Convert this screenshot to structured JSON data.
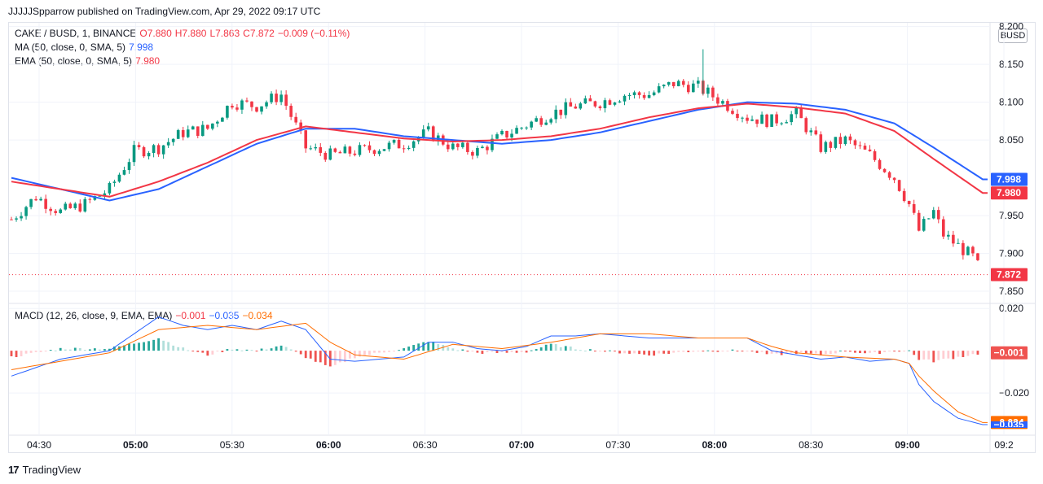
{
  "header": {
    "text": "JJJJJSpparrow published on TradingView.com, Apr 29, 2022 09:17 UTC"
  },
  "unit_label": "BUSD",
  "legend": {
    "symbol": "CAKE / BUSD, 1, BINANCE",
    "o": "O7.880",
    "h": "H7.880",
    "l": "L7.863",
    "c": "C7.872",
    "change": "−0.009 (−0.11%)",
    "ma_label": "MA (50, close, 0, SMA, 5)",
    "ma_value": "7.998",
    "ema_label": "EMA (50, close, 0, SMA, 5)",
    "ema_value": "7.980",
    "macd_label": "MACD (12, 26, close, 9, EMA, EMA)",
    "macd_hist": "−0.001",
    "macd_line": "−0.035",
    "macd_signal": "−0.034"
  },
  "footer": {
    "brand": "TradingView",
    "logo": "17"
  },
  "colors": {
    "up": "#089981",
    "down": "#f23645",
    "ma": "#2962ff",
    "ema": "#f23645",
    "macd": "#2962ff",
    "signal": "#ff6d00",
    "hist_up": "#26a69a",
    "hist_up_light": "#b2dfdb",
    "hist_dn": "#ef5350",
    "hist_dn_light": "#ffcdd2",
    "grid": "#f0f3fa"
  },
  "chart_data": [
    {
      "type": "candlestick",
      "x_ticks": [
        "04:30",
        "05:00",
        "05:30",
        "06:00",
        "06:30",
        "07:00",
        "07:30",
        "08:00",
        "08:30",
        "09:00",
        "09:2"
      ],
      "y_ticks": [
        "8.200",
        "8.150",
        "8.100",
        "8.050",
        "7.950",
        "7.900",
        "7.850"
      ],
      "ylim": [
        7.835,
        8.205
      ],
      "last_price": "7.872",
      "ma_last": "7.998",
      "ema_last": "7.980",
      "price_path": [
        [
          0,
          7.945
        ],
        [
          5,
          7.975
        ],
        [
          10,
          7.955
        ],
        [
          15,
          7.965
        ],
        [
          20,
          7.985
        ],
        [
          25,
          8.035
        ],
        [
          30,
          8.04
        ],
        [
          35,
          8.06
        ],
        [
          40,
          8.065
        ],
        [
          45,
          8.1
        ],
        [
          50,
          8.095
        ],
        [
          55,
          8.11
        ],
        [
          60,
          8.04
        ],
        [
          65,
          8.03
        ],
        [
          70,
          8.035
        ],
        [
          75,
          8.04
        ],
        [
          80,
          8.045
        ],
        [
          85,
          8.06
        ],
        [
          90,
          8.04
        ],
        [
          95,
          8.035
        ],
        [
          100,
          8.055
        ],
        [
          105,
          8.07
        ],
        [
          110,
          8.085
        ],
        [
          115,
          8.095
        ],
        [
          120,
          8.1
        ],
        [
          125,
          8.11
        ],
        [
          130,
          8.11
        ],
        [
          135,
          8.125
        ],
        [
          140,
          8.12
        ],
        [
          145,
          8.1
        ],
        [
          150,
          8.08
        ],
        [
          155,
          8.075
        ],
        [
          160,
          8.085
        ],
        [
          165,
          8.04
        ],
        [
          170,
          8.05
        ],
        [
          175,
          8.03
        ],
        [
          180,
          8.0
        ],
        [
          183,
          7.965
        ],
        [
          185,
          7.93
        ],
        [
          188,
          7.955
        ],
        [
          190,
          7.925
        ],
        [
          193,
          7.91
        ],
        [
          196,
          7.895
        ],
        [
          198,
          7.872
        ]
      ],
      "ma_path": [
        [
          0,
          8.0
        ],
        [
          10,
          7.985
        ],
        [
          20,
          7.97
        ],
        [
          30,
          7.985
        ],
        [
          40,
          8.015
        ],
        [
          50,
          8.045
        ],
        [
          60,
          8.065
        ],
        [
          70,
          8.065
        ],
        [
          80,
          8.055
        ],
        [
          90,
          8.05
        ],
        [
          100,
          8.045
        ],
        [
          110,
          8.05
        ],
        [
          120,
          8.06
        ],
        [
          130,
          8.075
        ],
        [
          140,
          8.09
        ],
        [
          150,
          8.1
        ],
        [
          160,
          8.098
        ],
        [
          170,
          8.09
        ],
        [
          180,
          8.072
        ],
        [
          188,
          8.04
        ],
        [
          198,
          7.998
        ]
      ],
      "ema_path": [
        [
          0,
          7.995
        ],
        [
          10,
          7.985
        ],
        [
          20,
          7.975
        ],
        [
          30,
          7.995
        ],
        [
          40,
          8.02
        ],
        [
          50,
          8.05
        ],
        [
          60,
          8.068
        ],
        [
          70,
          8.06
        ],
        [
          80,
          8.052
        ],
        [
          90,
          8.048
        ],
        [
          100,
          8.05
        ],
        [
          110,
          8.055
        ],
        [
          120,
          8.065
        ],
        [
          130,
          8.08
        ],
        [
          140,
          8.092
        ],
        [
          150,
          8.098
        ],
        [
          160,
          8.093
        ],
        [
          170,
          8.085
        ],
        [
          180,
          8.062
        ],
        [
          188,
          8.025
        ],
        [
          198,
          7.98
        ]
      ]
    },
    {
      "type": "macd",
      "y_ticks": [
        "0.020",
        "−0.020"
      ],
      "ylim": [
        -0.04,
        0.022
      ],
      "macd_last": "−0.035",
      "signal_last": "−0.034",
      "hist_last": "−0.001",
      "macd_path": [
        [
          0,
          -0.012
        ],
        [
          10,
          -0.004
        ],
        [
          20,
          0.0
        ],
        [
          25,
          0.008
        ],
        [
          30,
          0.016
        ],
        [
          35,
          0.012
        ],
        [
          40,
          0.01
        ],
        [
          45,
          0.012
        ],
        [
          50,
          0.01
        ],
        [
          55,
          0.014
        ],
        [
          60,
          0.01
        ],
        [
          65,
          -0.004
        ],
        [
          70,
          -0.005
        ],
        [
          75,
          -0.004
        ],
        [
          80,
          -0.003
        ],
        [
          85,
          0.004
        ],
        [
          90,
          0.004
        ],
        [
          95,
          0.001
        ],
        [
          100,
          0.0
        ],
        [
          105,
          0.002
        ],
        [
          110,
          0.007
        ],
        [
          115,
          0.007
        ],
        [
          120,
          0.008
        ],
        [
          130,
          0.006
        ],
        [
          140,
          0.006
        ],
        [
          150,
          0.006
        ],
        [
          155,
          0.0
        ],
        [
          160,
          -0.002
        ],
        [
          165,
          -0.004
        ],
        [
          170,
          -0.003
        ],
        [
          175,
          -0.005
        ],
        [
          180,
          -0.004
        ],
        [
          183,
          -0.006
        ],
        [
          185,
          -0.016
        ],
        [
          188,
          -0.024
        ],
        [
          193,
          -0.032
        ],
        [
          198,
          -0.035
        ]
      ],
      "signal_path": [
        [
          0,
          -0.009
        ],
        [
          10,
          -0.005
        ],
        [
          20,
          -0.001
        ],
        [
          30,
          0.01
        ],
        [
          40,
          0.012
        ],
        [
          50,
          0.01
        ],
        [
          60,
          0.013
        ],
        [
          65,
          0.004
        ],
        [
          70,
          -0.002
        ],
        [
          80,
          -0.004
        ],
        [
          90,
          0.003
        ],
        [
          100,
          0.001
        ],
        [
          110,
          0.004
        ],
        [
          120,
          0.008
        ],
        [
          130,
          0.008
        ],
        [
          140,
          0.006
        ],
        [
          150,
          0.006
        ],
        [
          155,
          0.002
        ],
        [
          160,
          -0.001
        ],
        [
          170,
          -0.003
        ],
        [
          180,
          -0.004
        ],
        [
          183,
          -0.006
        ],
        [
          185,
          -0.012
        ],
        [
          188,
          -0.019
        ],
        [
          193,
          -0.029
        ],
        [
          198,
          -0.034
        ]
      ]
    }
  ]
}
